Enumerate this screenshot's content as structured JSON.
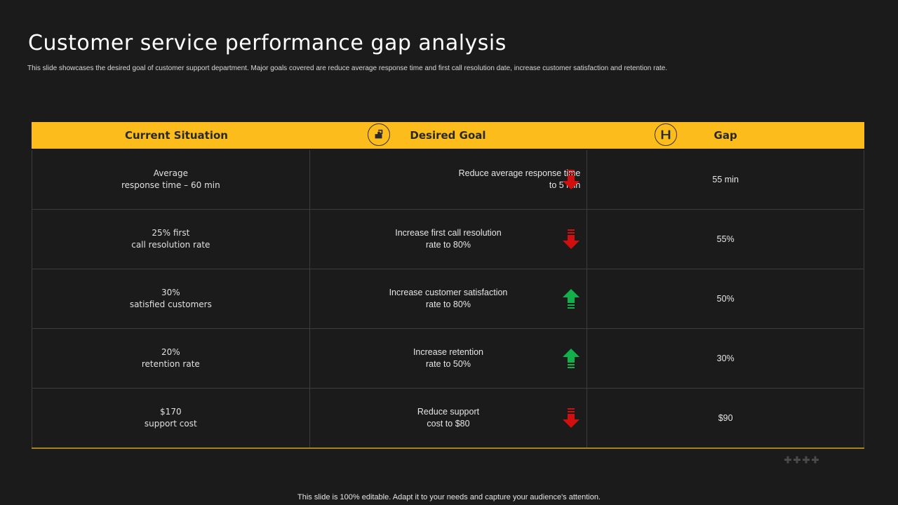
{
  "title": "Customer service performance gap analysis",
  "subtitle": "This slide showcases the desired goal of customer support department. Major goals covered are reduce average response time and first call resolution date, increase customer satisfaction and retention rate.",
  "headers": {
    "current": "Current Situation",
    "goal": "Desired Goal",
    "gap": "Gap"
  },
  "colors": {
    "accent": "#fbbc1c",
    "down_arrow": "#d10f0f",
    "up_arrow": "#12b04a",
    "background": "#1b1b1b"
  },
  "header_icons": [
    "puzzle-icon",
    "gap-icon"
  ],
  "rows": [
    {
      "current_line1": "Average",
      "current_line2": "response time – 60 min",
      "goal_line1": "Reduce average  response time",
      "goal_line2": "to 5 min",
      "direction": "down",
      "gap": "55 min"
    },
    {
      "current_line1": "25% first",
      "current_line2": "call resolution rate",
      "goal_line1": "Increase first call resolution",
      "goal_line2": "rate to 80%",
      "direction": "down",
      "gap": "55%"
    },
    {
      "current_line1": "30%",
      "current_line2": "satisfied customers",
      "goal_line1": "Increase customer satisfaction",
      "goal_line2": "rate to 80%",
      "direction": "up",
      "gap": "50%"
    },
    {
      "current_line1": "20%",
      "current_line2": "retention rate",
      "goal_line1": "Increase retention",
      "goal_line2": "rate to 50%",
      "direction": "up",
      "gap": "30%"
    },
    {
      "current_line1": "$170",
      "current_line2": "support cost",
      "goal_line1": "Reduce support",
      "goal_line2": "cost to $80",
      "direction": "down",
      "gap": "$90"
    }
  ],
  "footer": "This slide is 100% editable. Adapt it to your needs and capture your audience's attention."
}
